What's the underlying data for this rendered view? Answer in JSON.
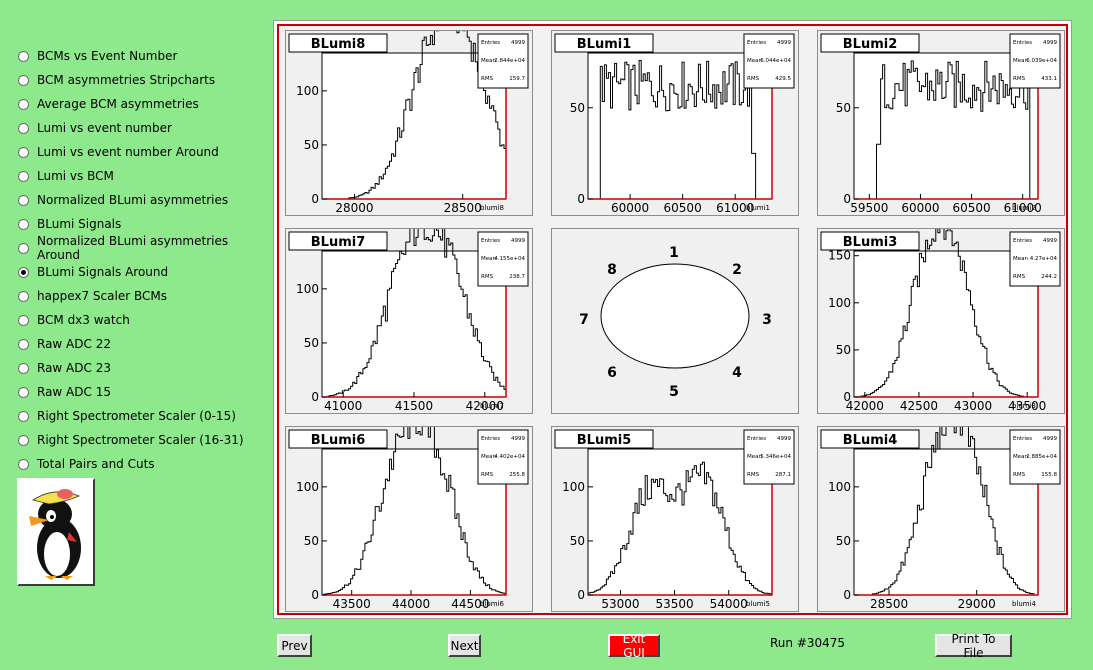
{
  "sidebar": {
    "options": [
      {
        "label": "BCMs vs Event Number",
        "selected": false
      },
      {
        "label": "BCM asymmetries Stripcharts",
        "selected": false
      },
      {
        "label": "Average BCM asymmetries",
        "selected": false
      },
      {
        "label": "Lumi vs event number",
        "selected": false
      },
      {
        "label": "Lumi vs event number Around",
        "selected": false
      },
      {
        "label": "Lumi vs BCM",
        "selected": false
      },
      {
        "label": "Normalized BLumi asymmetries",
        "selected": false
      },
      {
        "label": "BLumi Signals",
        "selected": false
      },
      {
        "label": "Normalized BLumi asymmetries Around",
        "selected": false
      },
      {
        "label": "BLumi Signals Around",
        "selected": true
      },
      {
        "label": "happex7 Scaler BCMs",
        "selected": false
      },
      {
        "label": "BCM dx3 watch",
        "selected": false
      },
      {
        "label": "Raw ADC 22",
        "selected": false
      },
      {
        "label": "Raw ADC 23",
        "selected": false
      },
      {
        "label": "Raw ADC 15",
        "selected": false
      },
      {
        "label": "Right Spectrometer Scaler (0-15)",
        "selected": false
      },
      {
        "label": "Right Spectrometer Scaler (16-31)",
        "selected": false
      },
      {
        "label": "Total Pairs and Cuts",
        "selected": false
      }
    ]
  },
  "footer": {
    "prev_label": "Prev",
    "next_label": "Next",
    "exit_label": "Exit GUI",
    "run_label": "Run #30475",
    "print_label": "Print To File"
  },
  "diagram": {
    "labels": [
      "1",
      "2",
      "3",
      "4",
      "5",
      "6",
      "7",
      "8"
    ]
  },
  "chart_data": [
    {
      "type": "bar",
      "title": "BLumi8",
      "xlabel": "blumi8",
      "entries": "4999",
      "mean": "2.844e+04",
      "rms": "159.7",
      "xlim": [
        27850,
        28700
      ],
      "ylim": [
        0,
        135
      ],
      "xticks": [
        28000,
        28500
      ],
      "yticks": [
        0,
        50,
        100
      ],
      "peaks": [
        28350,
        28530
      ],
      "width": 120,
      "heights": [
        128,
        128
      ]
    },
    {
      "type": "bar",
      "title": "BLumi1",
      "xlabel": "blumi1",
      "entries": "4999",
      "mean": "6.044e+04",
      "rms": "429.5",
      "xlim": [
        59600,
        61350
      ],
      "ylim": [
        0,
        80
      ],
      "xticks": [
        60000,
        60500,
        61000
      ],
      "yticks": [
        0,
        50
      ],
      "flat": [
        59720,
        61180,
        62
      ],
      "lastbar": [
        61170,
        25
      ]
    },
    {
      "type": "bar",
      "title": "BLumi2",
      "xlabel": "blumi2",
      "entries": "4999",
      "mean": "6.039e+04",
      "rms": "433.1",
      "xlim": [
        59350,
        61150
      ],
      "ylim": [
        0,
        80
      ],
      "xticks": [
        59500,
        60000,
        60500,
        61000
      ],
      "yticks": [
        0,
        50
      ],
      "flat": [
        59590,
        61060,
        62
      ],
      "firstbar": [
        59590,
        30
      ]
    },
    {
      "type": "bar",
      "title": "BLumi7",
      "xlabel": "blumi7",
      "entries": "4999",
      "mean": "4.155e+04",
      "rms": "238.7",
      "xlim": [
        40850,
        42150
      ],
      "ylim": [
        0,
        135
      ],
      "xticks": [
        41000,
        41500,
        42000
      ],
      "yticks": [
        0,
        50,
        100
      ],
      "peaks": [
        41450,
        41730
      ],
      "width": 180,
      "heights": [
        122,
        122
      ]
    },
    {
      "type": "bar",
      "title": "BLumi3",
      "xlabel": "blumi3",
      "entries": "4999",
      "mean": "4.27e+04",
      "rms": "244.2",
      "xlim": [
        41900,
        43600
      ],
      "ylim": [
        0,
        155
      ],
      "xticks": [
        42000,
        42500,
        43000,
        43500
      ],
      "yticks": [
        0,
        50,
        100,
        150
      ],
      "peaks": [
        42580,
        42850
      ],
      "width": 195,
      "heights": [
        135,
        130
      ]
    },
    {
      "type": "bar",
      "title": "BLumi6",
      "xlabel": "blumi6",
      "entries": "4999",
      "mean": "4.402e+04",
      "rms": "255.8",
      "xlim": [
        43250,
        44800
      ],
      "ylim": [
        0,
        135
      ],
      "xticks": [
        43500,
        44000,
        44500
      ],
      "yticks": [
        0,
        50,
        100
      ],
      "peaks": [
        43900,
        44200
      ],
      "width": 200,
      "heights": [
        122,
        120
      ]
    },
    {
      "type": "bar",
      "title": "BLumi5",
      "xlabel": "blumi5",
      "entries": "4999",
      "mean": "5.346e+04",
      "rms": "287.1",
      "xlim": [
        52700,
        54400
      ],
      "ylim": [
        0,
        135
      ],
      "xticks": [
        53000,
        53500,
        54000
      ],
      "yticks": [
        0,
        50,
        100
      ],
      "peaks": [
        53280,
        53770
      ],
      "width": 200,
      "heights": [
        108,
        118
      ]
    },
    {
      "type": "bar",
      "title": "BLumi4",
      "xlabel": "blumi4",
      "entries": "4999",
      "mean": "2.885e+04",
      "rms": "155.8",
      "xlim": [
        28300,
        29350
      ],
      "ylim": [
        0,
        135
      ],
      "xticks": [
        28500,
        29000
      ],
      "yticks": [
        0,
        50,
        100
      ],
      "peaks": [
        28780,
        28960
      ],
      "width": 120,
      "heights": [
        126,
        120
      ]
    }
  ]
}
